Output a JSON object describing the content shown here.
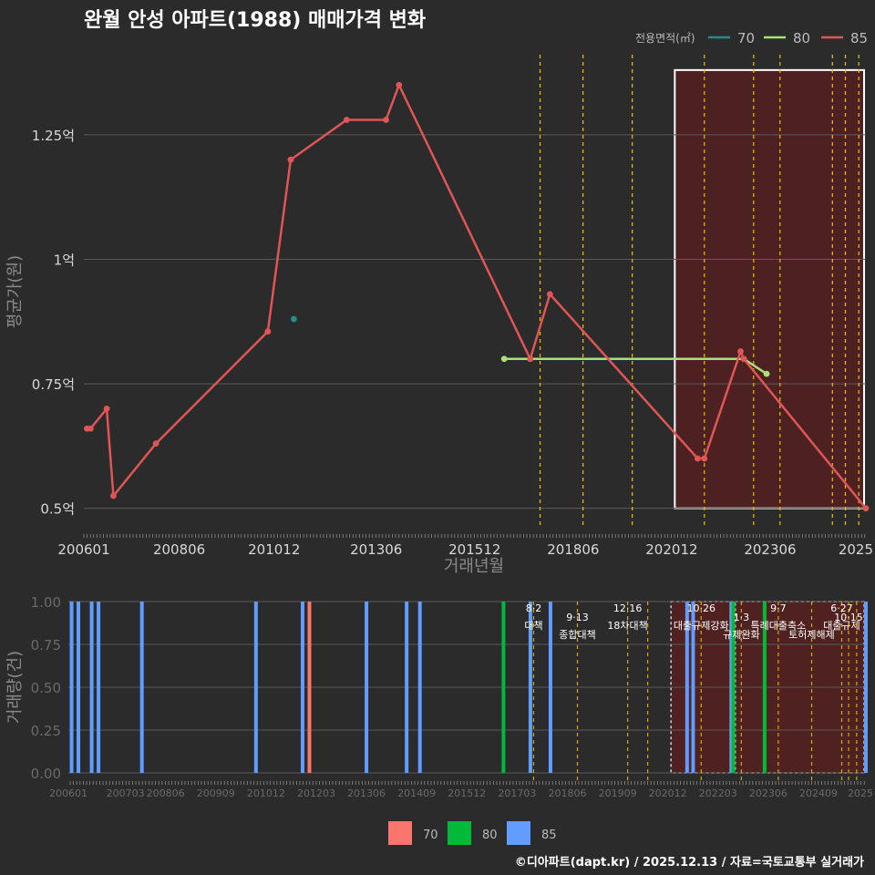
{
  "title": "완월 안성 아파트(1988) 매매가격 변화",
  "caption": "©디아파트(dapt.kr) / 2025.12.13 / 자료=국토교통부 실거래가",
  "colors": {
    "background": "#2b2b2b",
    "grid": "#5a5a5a",
    "series_70": "#2a8a8a",
    "series_80": "#a8e07a",
    "series_85": "#e05555",
    "bar_70": "#f8766d",
    "bar_80": "#00ba38",
    "bar_85": "#619cff",
    "policy_line": "#f0c000",
    "highlight_fill": "#5a1f1f",
    "highlight_border": "#ffffff"
  },
  "chart_data": [
    {
      "type": "line",
      "title": "완월 안성 아파트(1988) 매매가격 변화",
      "xlabel": "거래년월",
      "ylabel": "평균가(원)",
      "x_range": [
        2006.0,
        2025.85
      ],
      "ylim": [
        0.45,
        1.42
      ],
      "y_ticks": [
        0.5,
        0.75,
        1.0,
        1.25
      ],
      "y_tick_labels": [
        "0.5억",
        "0.75억",
        "1억",
        "1.25억"
      ],
      "x_ticks": [
        2006.0,
        2008.42,
        2010.83,
        2013.42,
        2015.92,
        2018.42,
        2020.92,
        2023.42,
        2025.92
      ],
      "x_tick_labels": [
        "200601",
        "200806",
        "201012",
        "201306",
        "201512",
        "201806",
        "202012",
        "202306",
        "2025"
      ],
      "legend_title": "전용면적(㎡)",
      "legend_position": "top-right",
      "series": [
        {
          "name": "70",
          "x": [
            2011.33
          ],
          "y": [
            0.88
          ]
        },
        {
          "name": "80",
          "x": [
            2016.67,
            2017.33,
            2022.75,
            2023.33
          ],
          "y": [
            0.8,
            0.8,
            0.8,
            0.77
          ]
        },
        {
          "name": "85",
          "x": [
            2006.08,
            2006.17,
            2006.58,
            2006.75,
            2007.83,
            2010.67,
            2011.25,
            2012.67,
            2013.67,
            2014.0,
            2017.33,
            2017.83,
            2021.58,
            2021.75,
            2022.67,
            2022.75,
            2025.85
          ],
          "y": [
            0.66,
            0.66,
            0.7,
            0.525,
            0.63,
            0.855,
            1.2,
            1.28,
            1.28,
            1.35,
            0.8,
            0.93,
            0.6,
            0.6,
            0.815,
            0.8,
            0.5
          ]
        }
      ],
      "policy_dates": [
        2017.58,
        2018.67,
        2019.92,
        2021.75,
        2023.0,
        2023.67,
        2025.0,
        2025.33,
        2025.67
      ],
      "highlight_range": [
        2021.0,
        2025.85
      ]
    },
    {
      "type": "bar",
      "ylabel": "거래량(건)",
      "x_range": [
        2006.0,
        2025.85
      ],
      "ylim": [
        0,
        1.0
      ],
      "y_ticks": [
        0,
        0.25,
        0.5,
        0.75,
        1.0
      ],
      "y_tick_labels": [
        "0.00",
        "0.25",
        "0.50",
        "0.75",
        "1.00"
      ],
      "x_ticks": [
        2006.0,
        2007.42,
        2008.42,
        2009.67,
        2010.92,
        2012.17,
        2013.42,
        2014.67,
        2015.92,
        2017.17,
        2018.42,
        2019.67,
        2020.92,
        2022.17,
        2023.42,
        2024.67,
        2025.92
      ],
      "x_tick_labels": [
        "200601",
        "200703",
        "200806",
        "200909",
        "201012",
        "201203",
        "201306",
        "201409",
        "201512",
        "201703",
        "201806",
        "201909",
        "202012",
        "202203",
        "202306",
        "202409",
        "2025"
      ],
      "legend_entries": [
        "70",
        "80",
        "85"
      ],
      "bars": [
        {
          "x": 2006.08,
          "value": 1,
          "series": "85"
        },
        {
          "x": 2006.25,
          "value": 1,
          "series": "85"
        },
        {
          "x": 2006.58,
          "value": 1,
          "series": "85"
        },
        {
          "x": 2006.75,
          "value": 1,
          "series": "85"
        },
        {
          "x": 2007.83,
          "value": 1,
          "series": "85"
        },
        {
          "x": 2010.67,
          "value": 1,
          "series": "85"
        },
        {
          "x": 2011.83,
          "value": 1,
          "series": "85"
        },
        {
          "x": 2012.0,
          "value": 1,
          "series": "70"
        },
        {
          "x": 2013.42,
          "value": 1,
          "series": "85"
        },
        {
          "x": 2014.42,
          "value": 1,
          "series": "85"
        },
        {
          "x": 2014.75,
          "value": 1,
          "series": "85"
        },
        {
          "x": 2016.83,
          "value": 1,
          "series": "80"
        },
        {
          "x": 2017.5,
          "value": 1,
          "series": "85"
        },
        {
          "x": 2018.0,
          "value": 1,
          "series": "85"
        },
        {
          "x": 2021.4,
          "value": 1,
          "series": "85"
        },
        {
          "x": 2021.55,
          "value": 1,
          "series": "85"
        },
        {
          "x": 2022.5,
          "value": 1,
          "series": "85"
        },
        {
          "x": 2022.55,
          "value": 1,
          "series": "80"
        },
        {
          "x": 2023.33,
          "value": 1,
          "series": "80"
        },
        {
          "x": 2025.85,
          "value": 1,
          "series": "85"
        }
      ],
      "policies": [
        {
          "x": 2017.58,
          "date": "8·2",
          "label": "대책"
        },
        {
          "x": 2018.67,
          "date": "9·13",
          "label": "종합대책"
        },
        {
          "x": 2019.92,
          "date": "12·16",
          "label": "18차대책"
        },
        {
          "x": 2020.42,
          "date": "",
          "label": ""
        },
        {
          "x": 2021.75,
          "date": "10·26",
          "label": "대출규제강화"
        },
        {
          "x": 2022.75,
          "date": "1·3",
          "label": "규제완화"
        },
        {
          "x": 2023.67,
          "date": "9·7",
          "label": "특례대출축소"
        },
        {
          "x": 2024.5,
          "date": "",
          "label": "토허제해제"
        },
        {
          "x": 2025.25,
          "date": "6·27",
          "label": "대출규제"
        },
        {
          "x": 2025.42,
          "date": "10·15",
          "label": ""
        },
        {
          "x": 2025.62,
          "date": "",
          "label": ""
        }
      ],
      "highlight_ranges": [
        [
          2021.0,
          2022.58
        ],
        [
          2022.6,
          2025.85
        ]
      ]
    }
  ]
}
